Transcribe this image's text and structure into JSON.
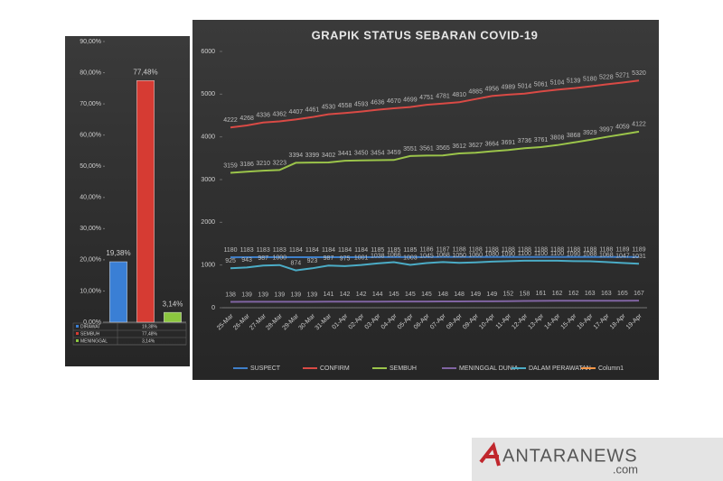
{
  "chart_data": [
    {
      "type": "bar",
      "categories": [
        "DIRAWAT",
        "SEMBUH",
        "MENINGGAL"
      ],
      "values": [
        19.38,
        77.48,
        3.14
      ],
      "value_labels": [
        "19,38%",
        "77,48%",
        "3,14%"
      ],
      "colors": [
        "#3a7fd5",
        "#d63b33",
        "#8bc63f"
      ],
      "ylim": [
        0,
        90
      ],
      "yticks": [
        {
          "value": 0,
          "label": "0,00%"
        },
        {
          "value": 10,
          "label": "10,00%"
        },
        {
          "value": 20,
          "label": "20,00%"
        },
        {
          "value": 30,
          "label": "30,00%"
        },
        {
          "value": 40,
          "label": "40,00%"
        },
        {
          "value": 50,
          "label": "50,00%"
        },
        {
          "value": 60,
          "label": "60,00%"
        },
        {
          "value": 70,
          "label": "70,00%"
        },
        {
          "value": 80,
          "label": "80,00%"
        },
        {
          "value": 90,
          "label": "90,00%"
        }
      ]
    },
    {
      "type": "line",
      "title": "GRAPIK STATUS SEBARAN COVID-19",
      "categories": [
        "25-Mar",
        "26-Mar",
        "27-Mar",
        "28-Mar",
        "29-Mar",
        "30-Mar",
        "31-Mar",
        "01-Apr",
        "02-Apr",
        "03-Apr",
        "04-Apr",
        "05-Apr",
        "06-Apr",
        "07-Apr",
        "08-Apr",
        "09-Apr",
        "10-Apr",
        "11-Apr",
        "12-Apr",
        "13-Apr",
        "14-Apr",
        "15-Apr",
        "16-Apr",
        "17-Apr",
        "18-Apr",
        "19-Apr"
      ],
      "series": [
        {
          "name": "SUSPECT",
          "color": "#3f7fc9",
          "values": [
            1180,
            1183,
            1183,
            1183,
            1184,
            1184,
            1184,
            1184,
            1184,
            1185,
            1185,
            1185,
            1186,
            1187,
            1188,
            1188,
            1188,
            1188,
            1188,
            1188,
            1188,
            1188,
            1188,
            1188,
            1189,
            1189
          ]
        },
        {
          "name": "CONFIRM",
          "color": "#d94a45",
          "values": [
            4222,
            4268,
            4336,
            4362,
            4407,
            4461,
            4530,
            4558,
            4593,
            4636,
            4670,
            4699,
            4751,
            4781,
            4810,
            4885,
            4956,
            4989,
            5014,
            5061,
            5104,
            5139,
            5180,
            5228,
            5271,
            5320
          ]
        },
        {
          "name": "SEMBUH",
          "color": "#9bc44a",
          "values": [
            3159,
            3186,
            3210,
            3223,
            3394,
            3399,
            3402,
            3441,
            3450,
            3454,
            3459,
            3551,
            3561,
            3565,
            3612,
            3627,
            3664,
            3691,
            3736,
            3761,
            3808,
            3868,
            3929,
            3997,
            4059,
            4122
          ]
        },
        {
          "name": "MENINGGAL DUNIA",
          "color": "#8064a2",
          "values": [
            138,
            139,
            139,
            139,
            139,
            139,
            141,
            142,
            142,
            144,
            145,
            145,
            145,
            148,
            148,
            149,
            149,
            152,
            158,
            161,
            162,
            162,
            163,
            163,
            165,
            167
          ]
        },
        {
          "name": "DALAM PERAWATAN",
          "color": "#4bacc6",
          "values": [
            925,
            943,
            987,
            1000,
            874,
            923,
            987,
            975,
            1001,
            1038,
            1066,
            1003,
            1045,
            1068,
            1050,
            1060,
            1080,
            1090,
            1100,
            1100,
            1100,
            1090,
            1088,
            1068,
            1047,
            1031
          ]
        },
        {
          "name": "Column1",
          "color": "#f79646",
          "values": [
            null,
            null,
            null,
            null,
            null,
            null,
            null,
            null,
            null,
            null,
            null,
            null,
            null,
            null,
            null,
            null,
            null,
            null,
            null,
            null,
            null,
            null,
            null,
            null,
            null,
            null
          ]
        }
      ],
      "ylim": [
        0,
        6000
      ],
      "yticks": [
        0,
        1000,
        2000,
        3000,
        4000,
        5000,
        6000
      ]
    }
  ],
  "watermark": {
    "text": "ANTARANEWS",
    "suffix": ".com"
  }
}
